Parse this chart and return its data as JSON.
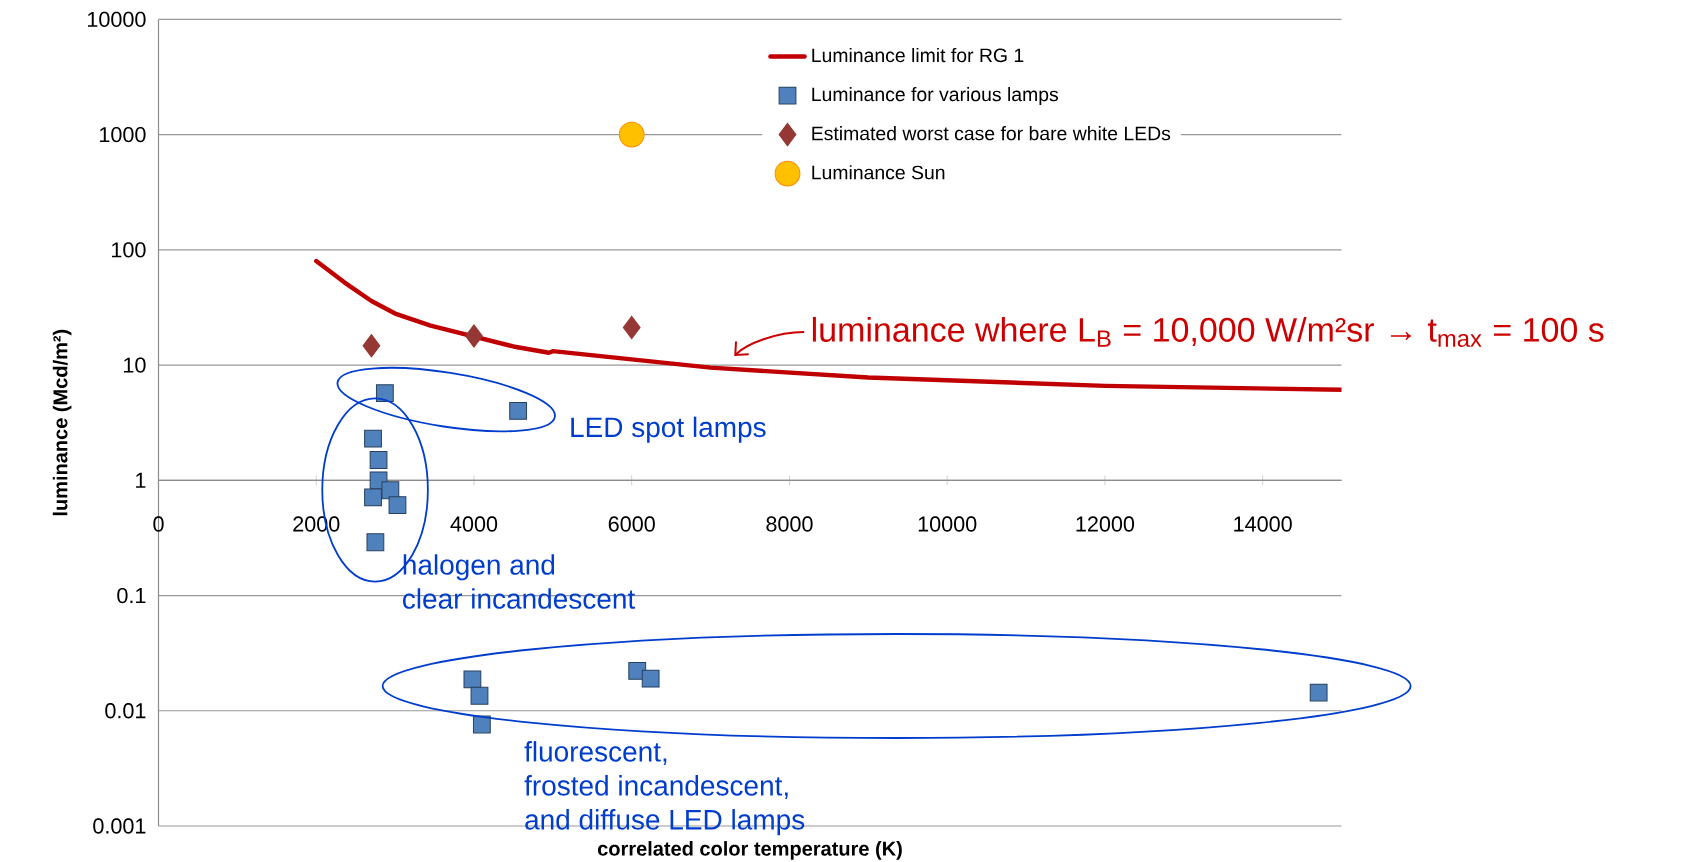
{
  "chart_data": {
    "type": "scatter",
    "xlabel": "correlated color temperature (K)",
    "ylabel": "luminance (Mcd/m²)",
    "xlim": [
      0,
      15000
    ],
    "ylim": [
      0.001,
      10000
    ],
    "xticks": [
      0,
      2000,
      4000,
      6000,
      8000,
      10000,
      12000,
      14000
    ],
    "yticks": [
      0.001,
      0.01,
      0.1,
      1,
      10,
      100,
      1000,
      10000
    ],
    "log": "y",
    "grid": "y",
    "legend": "top right",
    "annotations": [
      "luminance where L$_{B}$ = 10,000 W/m²sr → t$_{max}$ = 100 s",
      "LED spot lamps",
      "halogen and\nclear incandescent",
      "fluorescent,\nfrosted incandescent,\nand diffuse LED lamps"
    ],
    "series": [
      {
        "type": "line",
        "name": "Luminance limit for RG 1",
        "color": "#c00000",
        "marker": "none",
        "line_style": "solid",
        "x": [
          2000,
          2360,
          2700,
          3000,
          3450,
          4500,
          4950,
          5000,
          6000,
          7000,
          9000,
          12000,
          15000
        ],
        "values": [
          80,
          52,
          36,
          28,
          22,
          14.5,
          12.8,
          13.2,
          11.2,
          9.5,
          7.8,
          6.6,
          6.1
        ]
      },
      {
        "type": "scatter",
        "name": "Luminance for various lamps",
        "color": "#4f81bd",
        "marker": "square",
        "x": [
          2870,
          4560,
          2720,
          2790,
          2790,
          2940,
          2720,
          3030,
          2750,
          3980,
          4070,
          4100,
          6070,
          6240,
          14710
        ],
        "values": [
          5.7,
          4.0,
          2.3,
          1.5,
          1.0,
          0.82,
          0.71,
          0.61,
          0.29,
          0.0187,
          0.0135,
          0.0076,
          0.0222,
          0.019,
          0.0144
        ]
      },
      {
        "type": "scatter",
        "name": "Estimated worst case for bare white LEDs",
        "color": "#953735",
        "marker": "diamond",
        "x": [
          2700,
          4000,
          6000
        ],
        "values": [
          14.7,
          17.9,
          21.2
        ]
      },
      {
        "type": "scatter",
        "name": "Luminance Sun",
        "color": "#ffc000",
        "marker": "circle",
        "x": [
          6000
        ],
        "values": [
          1000
        ]
      }
    ]
  }
}
